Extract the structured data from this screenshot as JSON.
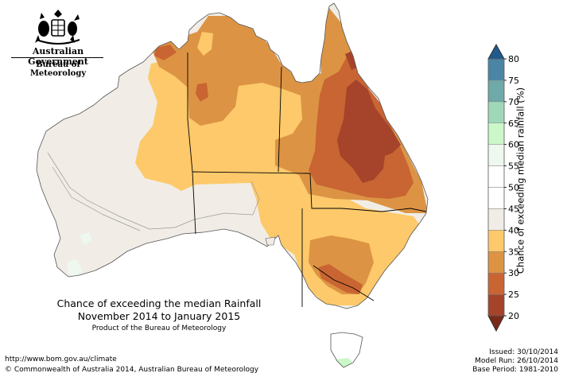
{
  "logo": {
    "government": "Australian Government",
    "bureau": "Bureau of Meteorology"
  },
  "title": {
    "line1": "Chance of exceeding the median Rainfall",
    "line2": "November 2014 to January 2015",
    "product": "Product of the Bureau of Meteorology"
  },
  "legend": {
    "title": "Chance of exceeding median rainfall (%)",
    "ticks": [
      "20",
      "25",
      "30",
      "35",
      "40",
      "45",
      "50",
      "55",
      "60",
      "65",
      "70",
      "75",
      "80"
    ],
    "bins": [
      {
        "color": "#a5432b"
      },
      {
        "color": "#c96532"
      },
      {
        "color": "#dc9444"
      },
      {
        "color": "#fdc96a"
      },
      {
        "color": "#f1ede6"
      },
      {
        "color": "#ffffff"
      },
      {
        "color": "#ffffff"
      },
      {
        "color": "#eef8ef"
      },
      {
        "color": "#ccf7c9"
      },
      {
        "color": "#9fd8b9"
      },
      {
        "color": "#6fa9a9"
      },
      {
        "color": "#4a85a6"
      }
    ],
    "low_arrow_color": "#7b2a1a",
    "high_arrow_color": "#1f5a8c"
  },
  "footer": {
    "url": "http://www.bom.gov.au/climate",
    "copyright": "© Commonwealth of Australia 2014, Australian Bureau of Meteorology",
    "issued": "Issued: 30/10/2014",
    "model_run": "Model Run: 26/10/2014",
    "base_period": "Base Period: 1981-2010"
  }
}
